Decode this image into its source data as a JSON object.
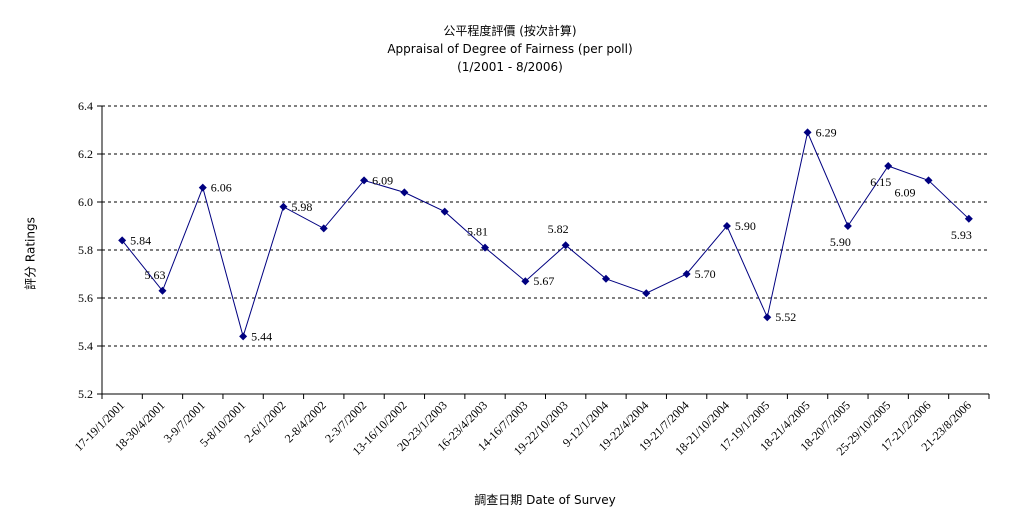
{
  "chart_data": {
    "type": "line",
    "title": "公平程度評價 (按次計算)",
    "subtitle": "Appraisal of Degree of Fairness (per poll)",
    "period": "(1/2001 - 8/2006)",
    "xlabel": "調查日期 Date of Survey",
    "ylabel": "評分 Ratings",
    "ylim": [
      5.2,
      6.4
    ],
    "yticks": [
      "5.2",
      "5.4",
      "5.6",
      "5.8",
      "6.0",
      "6.2",
      "6.4"
    ],
    "grid": true,
    "legend": "none",
    "line_color": "#000080",
    "x_tick_labels": [
      "17-19/1/2001",
      "18-30/4/2001",
      "3-9/7/2001",
      "5-8/10/2001",
      "2-6/1/2002",
      "2-8/4/2002",
      "2-3/7/2002",
      "13-16/10/2002",
      "20-23/1/2003",
      "16-23/4/2003",
      "14-16/7/2003",
      "19-22/10/2003",
      "9-12/1/2004",
      "19-22/4/2004",
      "19-21/7/2004",
      "18-21/10/2004",
      "17-19/1/2005",
      "18-21/4/2005",
      "18-20/7/2005",
      "25-29/10/2005",
      "17-21/2/2006",
      "21-23/8/2006"
    ],
    "x": [
      "17-19/1/2001",
      "18-30/4/2001",
      "3-9/7/2001",
      "5-8/10/2001",
      "2-6/1/2002",
      "2-8/4/2002",
      "2-3/7/2002",
      "13-16/10/2002",
      "20-23/1/2003",
      "16-23/4/2003",
      "14-16/7/2003",
      "19-22/10/2003",
      "9-12/1/2004",
      "19-22/4/2004",
      "19-21/7/2004",
      "18-21/10/2004",
      "17-19/1/2005",
      "18-21/4/2005",
      "18-20/7/2005",
      "25-29/10/2005",
      "17-21/2/2006",
      "21-23/8/2006"
    ],
    "values": [
      5.84,
      5.63,
      6.06,
      5.44,
      5.98,
      5.89,
      6.09,
      6.04,
      5.96,
      5.81,
      5.67,
      5.82,
      5.68,
      5.62,
      5.7,
      5.9,
      5.52,
      6.29,
      5.9,
      6.15,
      6.09,
      5.93
    ],
    "data_labels": [
      {
        "index": 0,
        "text": "5.84",
        "pos": "right"
      },
      {
        "index": 1,
        "text": "5.63",
        "pos": "above"
      },
      {
        "index": 2,
        "text": "6.06",
        "pos": "right"
      },
      {
        "index": 3,
        "text": "5.44",
        "pos": "right"
      },
      {
        "index": 4,
        "text": "5.98",
        "pos": "right"
      },
      {
        "index": 6,
        "text": "6.09",
        "pos": "right"
      },
      {
        "index": 9,
        "text": "5.81",
        "pos": "above"
      },
      {
        "index": 10,
        "text": "5.67",
        "pos": "right"
      },
      {
        "index": 11,
        "text": "5.82",
        "pos": "above"
      },
      {
        "index": 14,
        "text": "5.70",
        "pos": "right"
      },
      {
        "index": 15,
        "text": "5.90",
        "pos": "right"
      },
      {
        "index": 16,
        "text": "5.52",
        "pos": "right"
      },
      {
        "index": 17,
        "text": "6.29",
        "pos": "right"
      },
      {
        "index": 18,
        "text": "5.90",
        "pos": "below"
      },
      {
        "index": 19,
        "text": "6.15",
        "pos": "below"
      },
      {
        "index": 20,
        "text": "6.09",
        "pos": "left"
      },
      {
        "index": 21,
        "text": "5.93",
        "pos": "below"
      }
    ]
  }
}
